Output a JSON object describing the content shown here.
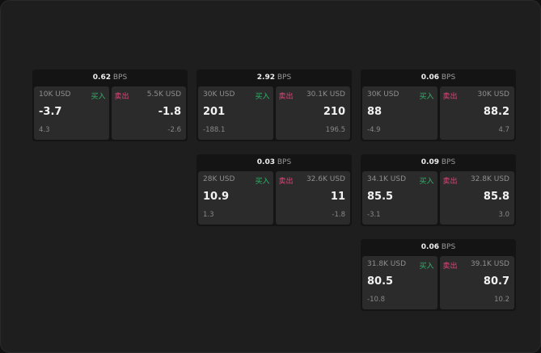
{
  "labels": {
    "buy": "买入",
    "sell": "卖出",
    "unit": "BPS"
  },
  "colors": {
    "buy": "#2fb36a",
    "sell": "#e0457b"
  },
  "cards": [
    {
      "spread": "0.62",
      "bid": {
        "size": "10K USD",
        "price": "-3.7",
        "change": "4.3"
      },
      "ask": {
        "size": "5.5K USD",
        "price": "-1.8",
        "change": "-2.6"
      }
    },
    {
      "spread": "2.92",
      "bid": {
        "size": "30K USD",
        "price": "201",
        "change": "-188.1"
      },
      "ask": {
        "size": "30.1K USD",
        "price": "210",
        "change": "196.5"
      }
    },
    {
      "spread": "0.06",
      "bid": {
        "size": "30K USD",
        "price": "88",
        "change": "-4.9"
      },
      "ask": {
        "size": "30K USD",
        "price": "88.2",
        "change": "4.7"
      }
    },
    {
      "spread": "0.03",
      "bid": {
        "size": "28K USD",
        "price": "10.9",
        "change": "1.3"
      },
      "ask": {
        "size": "32.6K USD",
        "price": "11",
        "change": "-1.8"
      }
    },
    {
      "spread": "0.09",
      "bid": {
        "size": "34.1K USD",
        "price": "85.5",
        "change": "-3.1"
      },
      "ask": {
        "size": "32.8K USD",
        "price": "85.8",
        "change": "3.0"
      }
    },
    {
      "spread": "0.06",
      "bid": {
        "size": "31.8K USD",
        "price": "80.5",
        "change": "-10.8"
      },
      "ask": {
        "size": "39.1K USD",
        "price": "80.7",
        "change": "10.2"
      }
    }
  ]
}
